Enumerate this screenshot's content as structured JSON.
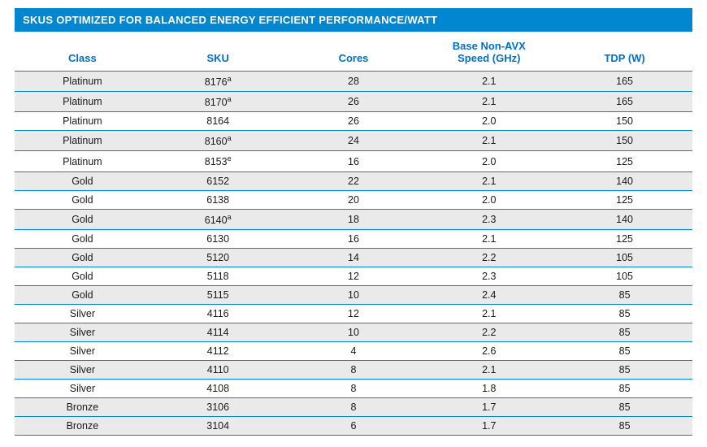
{
  "title": "SKUS OPTIMIZED FOR BALANCED ENERGY EFFICIENT PERFORMANCE/WATT",
  "colors": {
    "header_bg": "#0087cf",
    "header_text": "#ffffff",
    "col_header_text": "#0070c9",
    "row_border": "#0087cf",
    "shaded_row_bg": "#eaeaea",
    "cell_text": "#1a1a1a",
    "background": "#ffffff"
  },
  "typography": {
    "title_fontsize": 13,
    "header_fontsize": 13,
    "cell_fontsize": 12.5,
    "font_family": "Arial, Helvetica, sans-serif"
  },
  "columns": [
    {
      "key": "class",
      "label": "Class",
      "width": "20%"
    },
    {
      "key": "sku",
      "label": "SKU",
      "width": "20%"
    },
    {
      "key": "cores",
      "label": "Cores",
      "width": "20%"
    },
    {
      "key": "speed",
      "label": "Base Non-AVX\nSpeed (GHz)",
      "width": "20%"
    },
    {
      "key": "tdp",
      "label": "TDP (W)",
      "width": "20%"
    }
  ],
  "rows": [
    {
      "class": "Platinum",
      "sku": "8176",
      "sku_sup": "a",
      "cores": "28",
      "speed": "2.1",
      "tdp": "165",
      "shaded": true
    },
    {
      "class": "Platinum",
      "sku": "8170",
      "sku_sup": "a",
      "cores": "26",
      "speed": "2.1",
      "tdp": "165",
      "shaded": true
    },
    {
      "class": "Platinum",
      "sku": "8164",
      "sku_sup": "",
      "cores": "26",
      "speed": "2.0",
      "tdp": "150",
      "shaded": false
    },
    {
      "class": "Platinum",
      "sku": "8160",
      "sku_sup": "a",
      "cores": "24",
      "speed": "2.1",
      "tdp": "150",
      "shaded": true
    },
    {
      "class": "Platinum",
      "sku": "8153",
      "sku_sup": "e",
      "cores": "16",
      "speed": "2.0",
      "tdp": "125",
      "shaded": false
    },
    {
      "class": "Gold",
      "sku": "6152",
      "sku_sup": "",
      "cores": "22",
      "speed": "2.1",
      "tdp": "140",
      "shaded": true
    },
    {
      "class": "Gold",
      "sku": "6138",
      "sku_sup": "",
      "cores": "20",
      "speed": "2.0",
      "tdp": "125",
      "shaded": false
    },
    {
      "class": "Gold",
      "sku": "6140",
      "sku_sup": "a",
      "cores": "18",
      "speed": "2.3",
      "tdp": "140",
      "shaded": true
    },
    {
      "class": "Gold",
      "sku": "6130",
      "sku_sup": "",
      "cores": "16",
      "speed": "2.1",
      "tdp": "125",
      "shaded": false
    },
    {
      "class": "Gold",
      "sku": "5120",
      "sku_sup": "",
      "cores": "14",
      "speed": "2.2",
      "tdp": "105",
      "shaded": true
    },
    {
      "class": "Gold",
      "sku": "5118",
      "sku_sup": "",
      "cores": "12",
      "speed": "2.3",
      "tdp": "105",
      "shaded": false
    },
    {
      "class": "Gold",
      "sku": "5115",
      "sku_sup": "",
      "cores": "10",
      "speed": "2.4",
      "tdp": "85",
      "shaded": true
    },
    {
      "class": "Silver",
      "sku": "4116",
      "sku_sup": "",
      "cores": "12",
      "speed": "2.1",
      "tdp": "85",
      "shaded": false
    },
    {
      "class": "Silver",
      "sku": "4114",
      "sku_sup": "",
      "cores": "10",
      "speed": "2.2",
      "tdp": "85",
      "shaded": true
    },
    {
      "class": "Silver",
      "sku": "4112",
      "sku_sup": "",
      "cores": "4",
      "speed": "2.6",
      "tdp": "85",
      "shaded": false
    },
    {
      "class": "Silver",
      "sku": "4110",
      "sku_sup": "",
      "cores": "8",
      "speed": "2.1",
      "tdp": "85",
      "shaded": true
    },
    {
      "class": "Silver",
      "sku": "4108",
      "sku_sup": "",
      "cores": "8",
      "speed": "1.8",
      "tdp": "85",
      "shaded": false
    },
    {
      "class": "Bronze",
      "sku": "3106",
      "sku_sup": "",
      "cores": "8",
      "speed": "1.7",
      "tdp": "85",
      "shaded": true
    },
    {
      "class": "Bronze",
      "sku": "3104",
      "sku_sup": "",
      "cores": "6",
      "speed": "1.7",
      "tdp": "85",
      "shaded": true
    }
  ]
}
